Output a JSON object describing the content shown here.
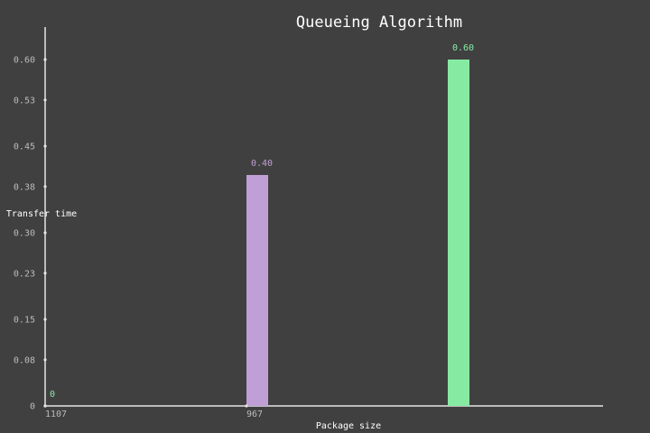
{
  "chart_data": {
    "type": "bar",
    "title": "Queueing Algorithm",
    "xlabel": "Package size",
    "ylabel": "Transfer time",
    "categories": [
      "1107",
      "967",
      ""
    ],
    "values": [
      0,
      0.4,
      0.6
    ],
    "value_labels": [
      "0",
      "0.40",
      "0.60"
    ],
    "yticks": [
      0,
      0.08,
      0.15,
      0.23,
      0.3,
      0.38,
      0.45,
      0.53,
      0.6
    ],
    "ytick_labels": [
      "0",
      "0.08",
      "0.15",
      "0.23",
      "0.30",
      "0.38",
      "0.45",
      "0.53",
      "0.60"
    ],
    "ylim": [
      0,
      0.6
    ],
    "grid": false,
    "legend": "none",
    "colors": {
      "background": "#404040",
      "axis": "#e6e6e6",
      "bars": [
        "#87eaa2",
        "#c09fd6",
        "#87eaa2"
      ]
    }
  }
}
